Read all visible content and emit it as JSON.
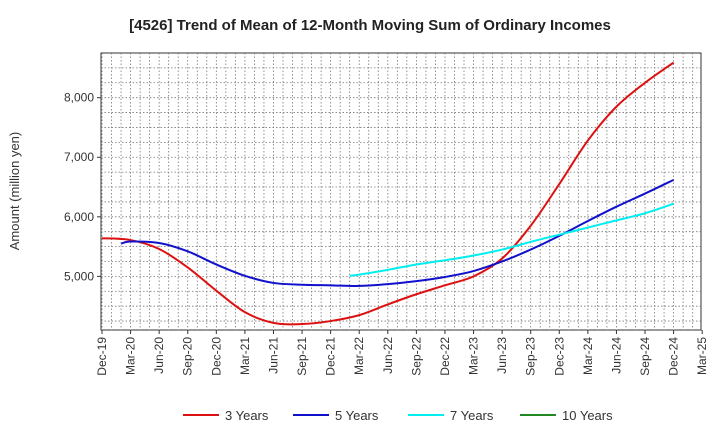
{
  "chart_data": {
    "type": "line",
    "title": "[4526]  Trend of Mean of 12-Month Moving Sum of Ordinary Incomes",
    "xlabel": "",
    "ylabel": "Amount (million yen)",
    "ylim": [
      4100,
      8750
    ],
    "yticks": [
      5000,
      6000,
      7000,
      8000
    ],
    "ytick_labels": [
      "5,000",
      "6,000",
      "7,000",
      "8,000"
    ],
    "grid": true,
    "legend_position": "bottom",
    "categories": [
      "Dec-19",
      "Mar-20",
      "Jun-20",
      "Sep-20",
      "Dec-20",
      "Mar-21",
      "Jun-21",
      "Sep-21",
      "Dec-21",
      "Mar-22",
      "Jun-22",
      "Sep-22",
      "Dec-22",
      "Mar-23",
      "Jun-23",
      "Sep-23",
      "Dec-23",
      "Mar-24",
      "Jun-24",
      "Sep-24",
      "Dec-24",
      "Mar-25"
    ],
    "series": [
      {
        "name": "3 Years",
        "color": "#dd1111",
        "points": [
          [
            0,
            5640
          ],
          [
            1,
            5610
          ],
          [
            2,
            5460
          ],
          [
            3,
            5150
          ],
          [
            4,
            4760
          ],
          [
            5,
            4400
          ],
          [
            6,
            4220
          ],
          [
            7,
            4200
          ],
          [
            8,
            4250
          ],
          [
            9,
            4350
          ],
          [
            10,
            4530
          ],
          [
            11,
            4700
          ],
          [
            12,
            4850
          ],
          [
            13,
            5000
          ],
          [
            14,
            5300
          ],
          [
            15,
            5850
          ],
          [
            16,
            6550
          ],
          [
            17,
            7280
          ],
          [
            18,
            7850
          ],
          [
            19,
            8250
          ],
          [
            20,
            8590
          ]
        ]
      },
      {
        "name": "5 Years",
        "color": "#1111cc",
        "points": [
          [
            0.67,
            5550
          ],
          [
            1,
            5585
          ],
          [
            2,
            5560
          ],
          [
            3,
            5420
          ],
          [
            4,
            5200
          ],
          [
            5,
            5010
          ],
          [
            6,
            4890
          ],
          [
            7,
            4860
          ],
          [
            8,
            4850
          ],
          [
            9,
            4840
          ],
          [
            10,
            4870
          ],
          [
            11,
            4920
          ],
          [
            12,
            4990
          ],
          [
            13,
            5090
          ],
          [
            14,
            5250
          ],
          [
            15,
            5450
          ],
          [
            16,
            5680
          ],
          [
            17,
            5930
          ],
          [
            18,
            6170
          ],
          [
            19,
            6390
          ],
          [
            20,
            6620
          ]
        ]
      },
      {
        "name": "7 Years",
        "color": "#00eeee",
        "points": [
          [
            8.67,
            5010
          ],
          [
            9,
            5030
          ],
          [
            10,
            5110
          ],
          [
            11,
            5200
          ],
          [
            12,
            5270
          ],
          [
            13,
            5350
          ],
          [
            14,
            5450
          ],
          [
            15,
            5580
          ],
          [
            16,
            5700
          ],
          [
            17,
            5820
          ],
          [
            18,
            5940
          ],
          [
            19,
            6060
          ],
          [
            20,
            6220
          ]
        ]
      },
      {
        "name": "10 Years",
        "color": "#228822",
        "points": []
      }
    ]
  }
}
